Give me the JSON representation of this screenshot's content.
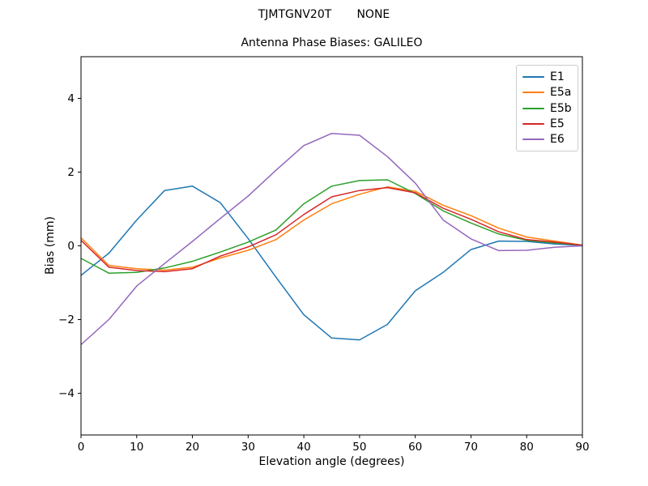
{
  "figure": {
    "suptitle": "TJMTGNV20T       NONE",
    "background": "#ffffff"
  },
  "chart_data": {
    "type": "line",
    "title": "Antenna Phase Biases: GALILEO",
    "xlabel": "Elevation angle (degrees)",
    "ylabel": "Bias (mm)",
    "xlim": [
      0,
      90
    ],
    "ylim": [
      -5.13,
      5.13
    ],
    "x_ticks": [
      0,
      10,
      20,
      30,
      40,
      50,
      60,
      70,
      80,
      90
    ],
    "y_ticks": [
      -4,
      -2,
      0,
      2,
      4
    ],
    "y_tick_labels": [
      "−4",
      "−2",
      "0",
      "2",
      "4"
    ],
    "grid": false,
    "legend_position": "upper right",
    "x": [
      0,
      5,
      10,
      15,
      20,
      25,
      30,
      35,
      40,
      45,
      50,
      55,
      60,
      65,
      70,
      75,
      80,
      85,
      90
    ],
    "series": [
      {
        "name": "E1",
        "color": "#1f77b4",
        "values": [
          -0.8,
          -0.2,
          0.7,
          1.5,
          1.62,
          1.17,
          0.2,
          -0.85,
          -1.87,
          -2.5,
          -2.55,
          -2.13,
          -1.22,
          -0.72,
          -0.1,
          0.13,
          0.12,
          0.05,
          0.01
        ]
      },
      {
        "name": "E5a",
        "color": "#ff7f0e",
        "values": [
          0.22,
          -0.53,
          -0.62,
          -0.66,
          -0.58,
          -0.33,
          -0.12,
          0.17,
          0.7,
          1.14,
          1.4,
          1.6,
          1.48,
          1.1,
          0.82,
          0.48,
          0.24,
          0.13,
          0.02
        ]
      },
      {
        "name": "E5b",
        "color": "#2ca02c",
        "values": [
          -0.34,
          -0.74,
          -0.72,
          -0.6,
          -0.42,
          -0.17,
          0.1,
          0.43,
          1.14,
          1.62,
          1.77,
          1.79,
          1.42,
          0.95,
          0.62,
          0.32,
          0.15,
          0.08,
          0.02
        ]
      },
      {
        "name": "E5",
        "color": "#d62728",
        "values": [
          0.15,
          -0.58,
          -0.67,
          -0.7,
          -0.62,
          -0.28,
          -0.03,
          0.3,
          0.85,
          1.33,
          1.5,
          1.58,
          1.44,
          1.02,
          0.72,
          0.38,
          0.17,
          0.1,
          0.02
        ]
      },
      {
        "name": "E6",
        "color": "#9467bd",
        "values": [
          -2.68,
          -2.0,
          -1.09,
          -0.48,
          0.12,
          0.74,
          1.35,
          2.05,
          2.72,
          3.05,
          3.0,
          2.42,
          1.7,
          0.7,
          0.19,
          -0.13,
          -0.12,
          -0.04,
          0.0
        ]
      }
    ]
  }
}
